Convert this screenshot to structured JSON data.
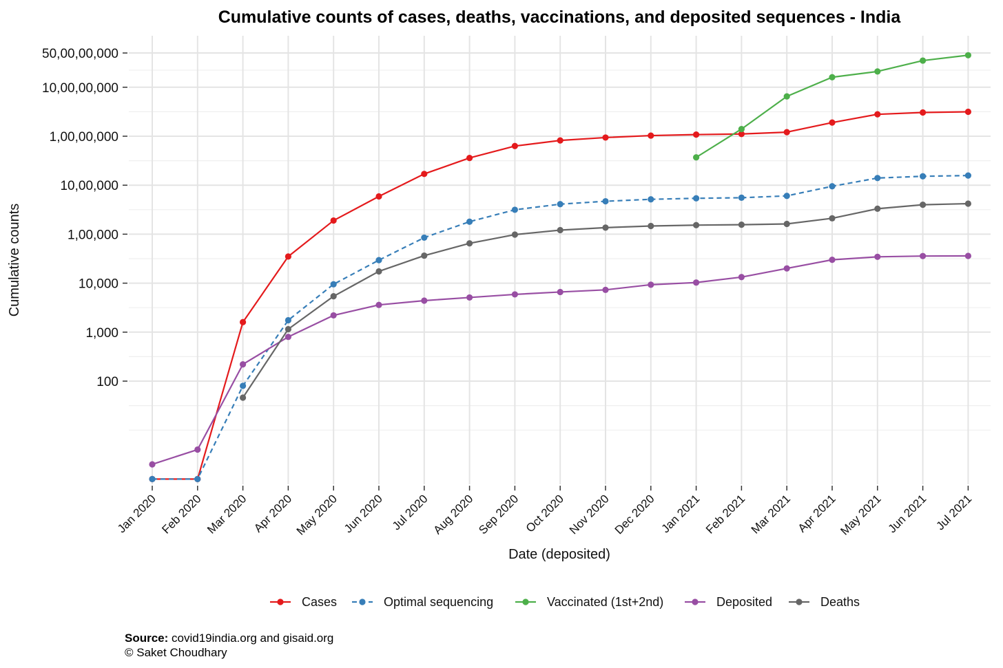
{
  "chart_data": {
    "type": "line",
    "title": "Cumulative counts of cases, deaths, vaccinations, and deposited sequences - India",
    "xlabel": "Date (deposited)",
    "ylabel": "Cumulative counts",
    "yscale": "log10",
    "grid": true,
    "legend_position": "bottom",
    "categories": [
      "Jan 2020",
      "Feb 2020",
      "Mar 2020",
      "Apr 2020",
      "May 2020",
      "Jun 2020",
      "Jul 2020",
      "Aug 2020",
      "Sep 2020",
      "Oct 2020",
      "Nov 2020",
      "Dec 2020",
      "Jan 2021",
      "Feb 2021",
      "Mar 2021",
      "Apr 2021",
      "May 2021",
      "Jun 2021",
      "Jul 2021"
    ],
    "yticks": [
      {
        "value": 100,
        "label": "100"
      },
      {
        "value": 1000,
        "label": "1,000"
      },
      {
        "value": 10000,
        "label": "10,000"
      },
      {
        "value": 100000,
        "label": "1,00,000"
      },
      {
        "value": 1000000,
        "label": "10,00,000"
      },
      {
        "value": 10000000,
        "label": "1,00,00,000"
      },
      {
        "value": 100000000,
        "label": "10,00,00,000"
      },
      {
        "value": 500000000,
        "label": "50,00,00,000"
      }
    ],
    "ylim": [
      0.36,
      1000000000
    ],
    "series": [
      {
        "name": "Cases",
        "color": "#e41a1c",
        "dashed": false,
        "values": [
          1,
          1,
          1600,
          35000,
          190000,
          590000,
          1700000,
          3600000,
          6300000,
          8200000,
          9400000,
          10300000,
          10800000,
          11100000,
          12100000,
          19000000,
          28000000,
          30500000,
          31500000
        ]
      },
      {
        "name": "Optimal sequencing",
        "color": "#377eb8",
        "dashed": true,
        "values": [
          1,
          1,
          80,
          1750,
          9500,
          29500,
          85000,
          180000,
          315000,
          410000,
          470000,
          515000,
          540000,
          555000,
          605000,
          950000,
          1400000,
          1520000,
          1575000
        ]
      },
      {
        "name": "Vaccinated (1st+2nd)",
        "color": "#4daf4a",
        "dashed": false,
        "values": [
          null,
          null,
          null,
          null,
          null,
          null,
          null,
          null,
          null,
          null,
          null,
          null,
          3700000,
          14000000,
          65000000,
          160000000,
          210000000,
          350000000,
          450000000
        ]
      },
      {
        "name": "Deposited",
        "color": "#984ea3",
        "dashed": false,
        "values": [
          2,
          4,
          220,
          800,
          2200,
          3600,
          4400,
          5100,
          5900,
          6600,
          7300,
          9300,
          10300,
          13300,
          20000,
          30000,
          34500,
          35800,
          36000
        ]
      },
      {
        "name": "Deaths",
        "color": "#666666",
        "dashed": false,
        "values": [
          null,
          null,
          46,
          1150,
          5400,
          17400,
          36500,
          65000,
          98000,
          121000,
          136000,
          147000,
          153000,
          156000,
          162000,
          211000,
          331000,
          399000,
          420000
        ]
      }
    ]
  },
  "caption": {
    "source_label": "Source:",
    "source_text": "covid19india.org and gisaid.org",
    "credit": "© Saket Choudhary"
  }
}
